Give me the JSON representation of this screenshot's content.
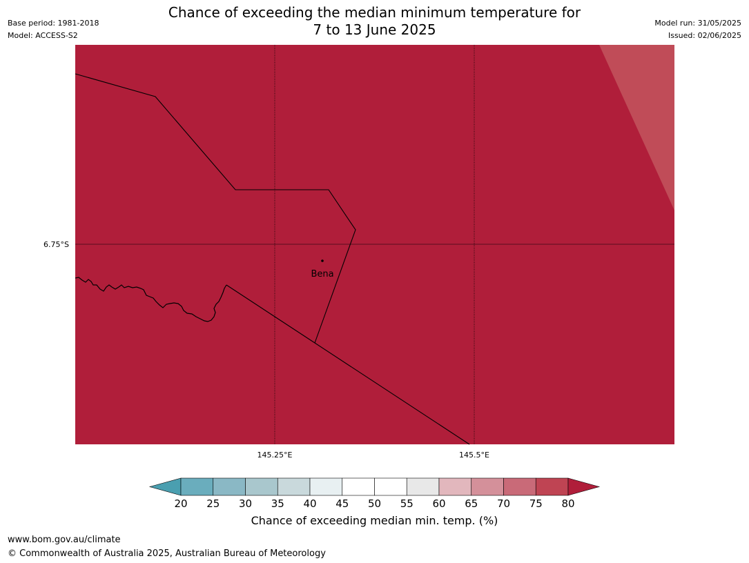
{
  "title": {
    "line1": "Chance of exceeding the median minimum temperature for",
    "line2": "7 to 13 June 2025"
  },
  "meta": {
    "base_period": "Base period: 1981-2018",
    "model": "Model: ACCESS-S2",
    "model_run": "Model run: 31/05/2025",
    "issued": "Issued: 02/06/2025"
  },
  "map": {
    "fill_color": "#b01e3a",
    "corner_fill_color": "#c04c58",
    "gridlines": {
      "lat_label": "6.75°S",
      "lon_labels": [
        "145.25°E",
        "145.5°E"
      ]
    },
    "place": {
      "name": "Bena"
    }
  },
  "colorbar": {
    "title": "Chance of exceeding median min. temp. (%)",
    "ticks": [
      "20",
      "25",
      "30",
      "35",
      "40",
      "45",
      "50",
      "55",
      "60",
      "65",
      "70",
      "75",
      "80"
    ],
    "colors": [
      "#4a9fb0",
      "#6aadbd",
      "#8ab8c5",
      "#a9c7cd",
      "#c9d9dc",
      "#e8f0f2",
      "#ffffff",
      "#ffffff",
      "#e8e8e8",
      "#e2b7bd",
      "#d4909a",
      "#c96a78",
      "#bf4453",
      "#b01e3a"
    ]
  },
  "footer": {
    "url": "www.bom.gov.au/climate",
    "copyright": "© Commonwealth of Australia 2025, Australian Bureau of Meteorology"
  }
}
